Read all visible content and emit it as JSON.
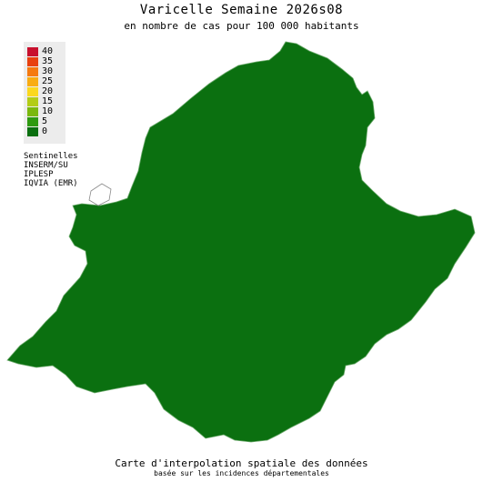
{
  "title": "Varicelle Semaine 2026s08",
  "subtitle": "en nombre de cas pour 100 000 habitants",
  "legend": [
    {
      "label": "40",
      "color": "#c8102e"
    },
    {
      "label": "35",
      "color": "#e8410f"
    },
    {
      "label": "30",
      "color": "#f57a10"
    },
    {
      "label": "25",
      "color": "#f9ac12"
    },
    {
      "label": "20",
      "color": "#fbd81e"
    },
    {
      "label": "15",
      "color": "#b3cc16"
    },
    {
      "label": "10",
      "color": "#7ab80d"
    },
    {
      "label": "5",
      "color": "#2e9a10"
    },
    {
      "label": "0",
      "color": "#0b7010"
    }
  ],
  "sources": [
    "Sentinelles",
    "INSERM/SU",
    "IPLESP",
    "IQVIA (EMR)"
  ],
  "footer": {
    "line1": "Carte d'interpolation spatiale des données",
    "line2": "basée sur les incidences départementales"
  },
  "colors": {
    "dark_green": "#0b7010",
    "green": "#2e9a10",
    "light_green": "#7ab80d",
    "yellow_green": "#b3cc16",
    "yellow": "#fbd81e",
    "orange": "#f9ac12",
    "border": "#8fc08f"
  }
}
